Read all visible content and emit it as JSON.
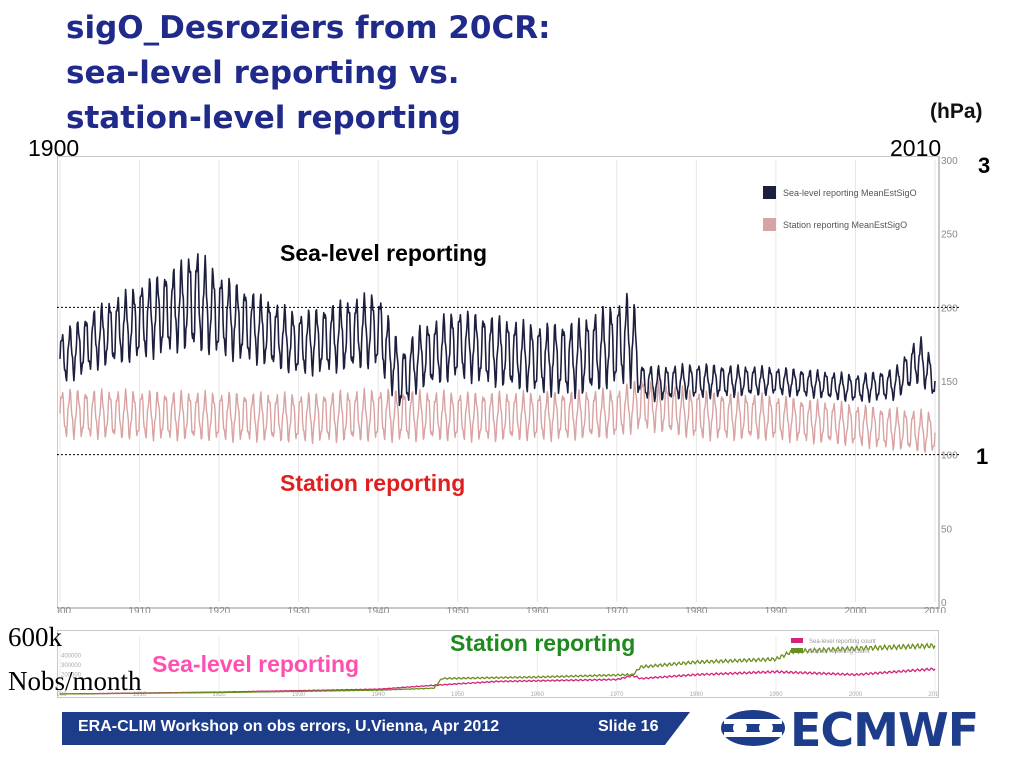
{
  "slide": {
    "title_lines": [
      "sigO_Desroziers from 20CR:",
      "sea-level reporting vs.",
      "station-level reporting"
    ],
    "unit_label": "(hPa)",
    "year_start_label": "1900",
    "year_end_label": "2010",
    "big_tick_upper": "3",
    "big_tick_lower": "1",
    "annotation_sea_level": "Sea-level reporting",
    "annotation_station": "Station reporting",
    "bottom_annotation_station": "Station reporting",
    "bottom_annotation_sea_level": "Sea-level reporting",
    "bottom_side_label_1": "600k",
    "bottom_side_label_2": "Nobs/month",
    "footer_text": "ERA-CLIM Workshop on obs errors, U.Vienna, Apr 2012",
    "slide_number": "Slide 16",
    "logo_text": "ECMWF",
    "colors": {
      "title": "#1f2a8a",
      "sea_level_series": "#1c1f3d",
      "station_series": "#d9a3a3",
      "annot_red": "#e02020",
      "annot_green": "#1e8a1e",
      "annot_pink": "#ff4fb0",
      "footer_bg": "#1d3d8a"
    }
  },
  "chart_data": [
    {
      "type": "line",
      "x_range": [
        1900,
        2010
      ],
      "ylim": [
        0,
        300
      ],
      "y_ticks": [
        0,
        50,
        100,
        150,
        200,
        250,
        300
      ],
      "x_ticks": [
        1900,
        1910,
        1920,
        1930,
        1940,
        1950,
        1960,
        1970,
        1980,
        1990,
        2000,
        2010
      ],
      "reference_lines_y": [
        100,
        200
      ],
      "legend": [
        "Sea-level reporting MeanEstSigO",
        "Station reporting MeanEstSigO"
      ],
      "legend_placement": "top-right",
      "grid": "vertical",
      "series": [
        {
          "name": "Sea-level reporting MeanEstSigO",
          "x": [
            1900,
            1905,
            1910,
            1915,
            1917,
            1920,
            1925,
            1930,
            1935,
            1940,
            1943,
            1945,
            1950,
            1955,
            1960,
            1965,
            1970,
            1972,
            1973,
            1975,
            1980,
            1985,
            1990,
            1995,
            2000,
            2005,
            2008,
            2010
          ],
          "values": [
            165,
            180,
            190,
            200,
            205,
            195,
            185,
            175,
            180,
            185,
            150,
            165,
            175,
            170,
            165,
            165,
            175,
            180,
            150,
            148,
            150,
            150,
            150,
            148,
            145,
            148,
            165,
            150
          ],
          "seasonal_amplitude": [
            15,
            18,
            22,
            25,
            30,
            24,
            20,
            18,
            20,
            22,
            18,
            18,
            20,
            20,
            20,
            22,
            24,
            28,
            10,
            10,
            10,
            9,
            8,
            8,
            8,
            9,
            14,
            10
          ]
        },
        {
          "name": "Station reporting MeanEstSigO",
          "x": [
            1900,
            1910,
            1920,
            1930,
            1940,
            1950,
            1960,
            1970,
            1973,
            1980,
            1990,
            2000,
            2010
          ],
          "values": [
            128,
            127,
            126,
            125,
            127,
            126,
            126,
            128,
            135,
            127,
            125,
            120,
            115
          ],
          "seasonal_amplitude": [
            14,
            14,
            14,
            14,
            15,
            14,
            14,
            14,
            15,
            14,
            13,
            12,
            12
          ]
        }
      ]
    },
    {
      "type": "line",
      "x_range": [
        1900,
        2010
      ],
      "x_ticks": [
        1900,
        1910,
        1920,
        1930,
        1940,
        1950,
        1960,
        1970,
        1980,
        1990,
        2000,
        2010
      ],
      "y_ticks": [
        400000,
        300000,
        200000
      ],
      "legend": [
        "Sea-level reporting count",
        "Station reporting count"
      ],
      "legend_placement": "top-right",
      "series": [
        {
          "name": "Sea-level reporting count",
          "x": [
            1900,
            1920,
            1940,
            1947,
            1955,
            1970,
            1972,
            1973,
            1980,
            1990,
            2000,
            2010
          ],
          "values": [
            0,
            20000,
            50000,
            90000,
            130000,
            150000,
            190000,
            160000,
            200000,
            230000,
            200000,
            260000
          ]
        },
        {
          "name": "Station reporting count",
          "x": [
            1900,
            1920,
            1940,
            1947,
            1948,
            1960,
            1972,
            1973,
            1980,
            1990,
            1992,
            2000,
            2010
          ],
          "values": [
            0,
            15000,
            40000,
            60000,
            160000,
            175000,
            200000,
            280000,
            330000,
            360000,
            440000,
            470000,
            500000
          ]
        }
      ]
    }
  ]
}
